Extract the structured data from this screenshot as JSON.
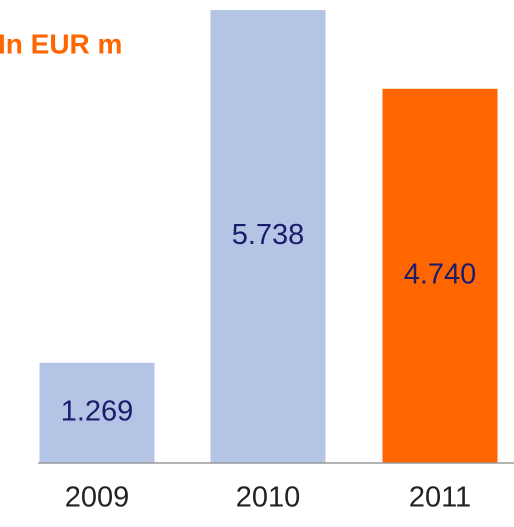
{
  "chart_data": {
    "type": "bar",
    "title": "In EUR m",
    "categories": [
      "2009",
      "2010",
      "2011"
    ],
    "values": [
      1269,
      5738,
      4740
    ],
    "value_labels": [
      "1.269",
      "5.738",
      "4.740"
    ],
    "colors": [
      "#b4c4e4",
      "#b4c4e4",
      "#ff6600"
    ]
  }
}
